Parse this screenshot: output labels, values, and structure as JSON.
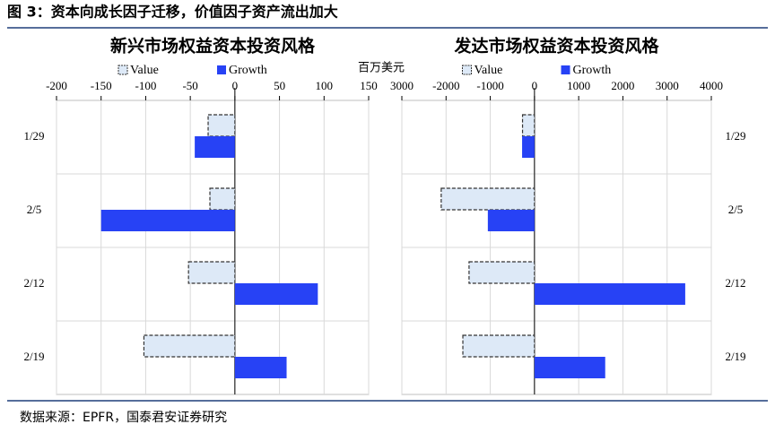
{
  "header": {
    "title": "图 3：资本向成长因子迁移，价值因子资产流出加大",
    "unit": "百万美元",
    "source": "数据来源：EPFR，国泰君安证券研究"
  },
  "chart_data": [
    {
      "type": "barh",
      "title": "新兴市场权益资本投资风格",
      "categories": [
        "1/29",
        "2/5",
        "2/12",
        "2/19"
      ],
      "series": [
        {
          "name": "Value",
          "color": "#dde9f7",
          "edgecolor": "#333333",
          "linestyle": "dashed",
          "values": [
            -30,
            -28,
            -52,
            -102
          ]
        },
        {
          "name": "Growth",
          "color": "#2742f5",
          "values": [
            -45,
            -150,
            93,
            58
          ]
        }
      ],
      "xlim": [
        -200,
        150
      ],
      "xticks": [
        -200,
        -150,
        -100,
        -50,
        0,
        50,
        100,
        150
      ],
      "grid": true,
      "category_side": "left"
    },
    {
      "type": "barh",
      "title": "发达市场权益资本投资风格",
      "categories": [
        "1/29",
        "2/5",
        "2/12",
        "2/19"
      ],
      "series": [
        {
          "name": "Value",
          "color": "#dde9f7",
          "edgecolor": "#333333",
          "linestyle": "dashed",
          "values": [
            -270,
            -2110,
            -1480,
            -1620
          ]
        },
        {
          "name": "Growth",
          "color": "#2742f5",
          "values": [
            -280,
            -1055,
            3410,
            1600
          ]
        }
      ],
      "xlim": [
        -3000,
        4000
      ],
      "xticks": [
        {
          "value": -3000,
          "label": "3000"
        },
        -2000,
        -1000,
        0,
        1000,
        2000,
        3000,
        4000
      ],
      "grid": true,
      "category_side": "right"
    }
  ]
}
